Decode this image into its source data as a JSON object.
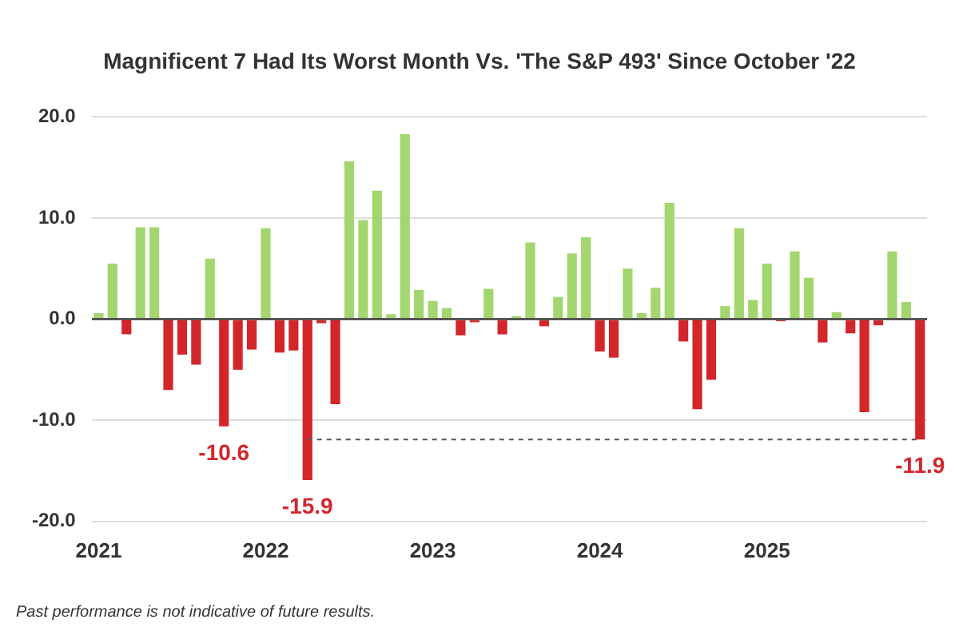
{
  "chart_data": {
    "type": "bar",
    "title": "Magnificent 7 Had Its Worst Month Vs. 'The S&P 493' Since October '22",
    "categories": [
      "2021",
      null,
      null,
      null,
      null,
      null,
      null,
      null,
      null,
      null,
      null,
      null,
      "2022",
      null,
      null,
      null,
      null,
      null,
      null,
      null,
      null,
      null,
      null,
      null,
      "2023",
      null,
      null,
      null,
      null,
      null,
      null,
      null,
      null,
      null,
      null,
      null,
      "2024",
      null,
      null,
      null,
      null,
      null,
      null,
      null,
      null,
      null,
      null,
      null,
      "2025",
      null,
      null,
      null,
      null,
      null,
      null,
      null,
      null,
      null,
      null,
      null
    ],
    "values": [
      0.6,
      5.5,
      -1.5,
      9.1,
      9.1,
      -7.0,
      -3.5,
      -4.5,
      6.0,
      -10.6,
      -5.0,
      -3.0,
      9.0,
      -3.3,
      -3.1,
      -15.9,
      -0.4,
      -8.4,
      15.6,
      9.8,
      12.7,
      0.5,
      18.3,
      2.9,
      1.8,
      1.1,
      -1.6,
      -0.3,
      3.0,
      -1.5,
      0.3,
      7.6,
      -0.7,
      2.2,
      6.5,
      8.1,
      -3.2,
      -3.8,
      5.0,
      0.6,
      3.1,
      11.5,
      -2.2,
      -8.9,
      -6.0,
      1.3,
      9.0,
      1.9,
      5.5,
      -0.2,
      6.7,
      4.1,
      -2.3,
      0.7,
      -1.4,
      -9.2,
      -0.6,
      6.7,
      1.7,
      -11.9
    ],
    "colors": [
      "#a3d66e",
      "#a3d66e",
      "#d3262b",
      "#a3d66e",
      "#a3d66e",
      "#d3262b",
      "#d3262b",
      "#d3262b",
      "#a3d66e",
      "#d3262b",
      "#d3262b",
      "#d3262b",
      "#a3d66e",
      "#d3262b",
      "#d3262b",
      "#d3262b",
      "#d3262b",
      "#d3262b",
      "#a3d66e",
      "#a3d66e",
      "#a3d66e",
      "#a3d66e",
      "#a3d66e",
      "#a3d66e",
      "#a3d66e",
      "#a3d66e",
      "#d3262b",
      "#d3262b",
      "#a3d66e",
      "#d3262b",
      "#a3d66e",
      "#a3d66e",
      "#d3262b",
      "#a3d66e",
      "#a3d66e",
      "#a3d66e",
      "#d3262b",
      "#d3262b",
      "#a3d66e",
      "#a3d66e",
      "#a3d66e",
      "#a3d66e",
      "#d3262b",
      "#d3262b",
      "#d3262b",
      "#a3d66e",
      "#a3d66e",
      "#a3d66e",
      "#a3d66e",
      "#d3262b",
      "#a3d66e",
      "#a3d66e",
      "#d3262b",
      "#a3d66e",
      "#d3262b",
      "#d3262b",
      "#d3262b",
      "#a3d66e",
      "#a3d66e",
      "#d3262b"
    ],
    "value_labels": [
      null,
      null,
      null,
      null,
      null,
      null,
      null,
      null,
      null,
      "-10.6",
      null,
      null,
      null,
      null,
      null,
      "-15.9",
      null,
      null,
      null,
      null,
      null,
      null,
      null,
      null,
      null,
      null,
      null,
      null,
      null,
      null,
      null,
      null,
      null,
      null,
      null,
      null,
      null,
      null,
      null,
      null,
      null,
      null,
      null,
      null,
      null,
      null,
      null,
      null,
      null,
      null,
      null,
      null,
      null,
      null,
      null,
      null,
      null,
      null,
      null,
      "-11.9"
    ],
    "ylim": [
      -20,
      20
    ],
    "yticks": [
      {
        "value": -20,
        "label": "-20.0"
      },
      {
        "value": -10,
        "label": "-10.0"
      },
      {
        "value": 0,
        "label": "0.0"
      },
      {
        "value": 10,
        "label": "10.0"
      },
      {
        "value": 20,
        "label": "20.0"
      }
    ],
    "grid": "y",
    "legend": false,
    "ref_lines": [
      {
        "axis": "y",
        "value": -11.9,
        "color": "#555555",
        "line_style": "dashed"
      }
    ],
    "annotations": [
      "Past performance is not indicative of future results."
    ]
  }
}
